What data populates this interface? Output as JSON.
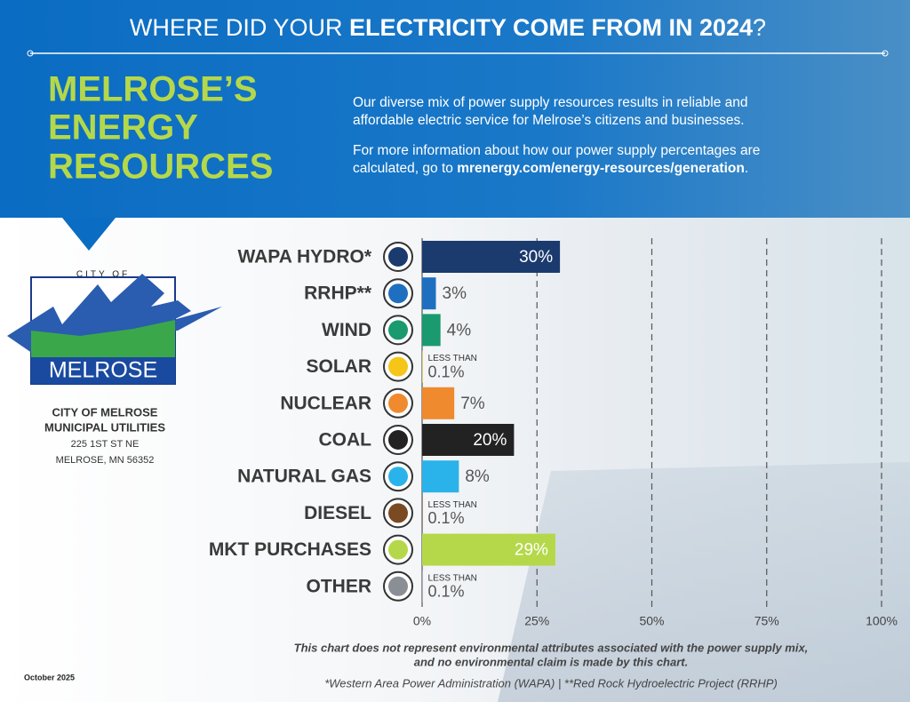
{
  "header": {
    "title_parts": [
      "WHERE DID YOUR ",
      "ELECTRICITY COME FROM IN 2024",
      "?"
    ],
    "heading_lines": [
      "MELROSE’S",
      "ENERGY",
      "RESOURCES"
    ],
    "intro_lines": [
      "Our diverse mix of power supply resources results in reliable and",
      "affordable electric service for Melrose’s citizens and businesses."
    ],
    "info_lines": [
      "For more information about how our power supply percentages are",
      "calculated, go to "
    ],
    "info_link": "mrenergy.com/energy-resources/generation",
    "info_end": "."
  },
  "logo": {
    "top": "CITY OF",
    "name": "MELROSE"
  },
  "address": [
    "CITY OF MELROSE",
    "MUNICIPAL UTILITIES",
    "225 1ST ST NE",
    "MELROSE, MN 56352"
  ],
  "date": "October 2025",
  "chart_data": {
    "type": "bar",
    "orientation": "horizontal",
    "categories": [
      "WAPA HYDRO*",
      "RRHP**",
      "WIND",
      "SOLAR",
      "NUCLEAR",
      "COAL",
      "NATURAL GAS",
      "DIESEL",
      "MKT PURCHASES",
      "OTHER"
    ],
    "values": [
      30,
      3,
      4,
      0.1,
      7,
      20,
      8,
      0.1,
      29,
      0.1
    ],
    "value_labels": [
      "30%",
      "3%",
      "4%",
      "0.1%",
      "7%",
      "20%",
      "8%",
      "0.1%",
      "29%",
      "0.1%"
    ],
    "value_label_prefixes": [
      null,
      null,
      null,
      "LESS THAN",
      null,
      null,
      null,
      "LESS THAN",
      null,
      "LESS THAN"
    ],
    "colors": [
      "#1b3a6e",
      "#1f6fc1",
      "#1a9a6e",
      "#f5c518",
      "#f08a2e",
      "#222222",
      "#2ab3ea",
      "#7a4a22",
      "#b5d84a",
      "#8a8f96"
    ],
    "xlim": [
      0,
      100
    ],
    "xticks": [
      {
        "value": 0,
        "label": "0%"
      },
      {
        "value": 25,
        "label": "25%"
      },
      {
        "value": 50,
        "label": "50%"
      },
      {
        "value": 75,
        "label": "75%"
      },
      {
        "value": 100,
        "label": "100%"
      }
    ],
    "grid": true,
    "notes": [
      "This chart does not represent environmental attributes associated with the power supply mix,",
      "and no environmental claim is made by this chart.",
      "*Western Area Power Administration (WAPA) | **Red Rock Hydroelectric Project (RRHP)"
    ]
  }
}
